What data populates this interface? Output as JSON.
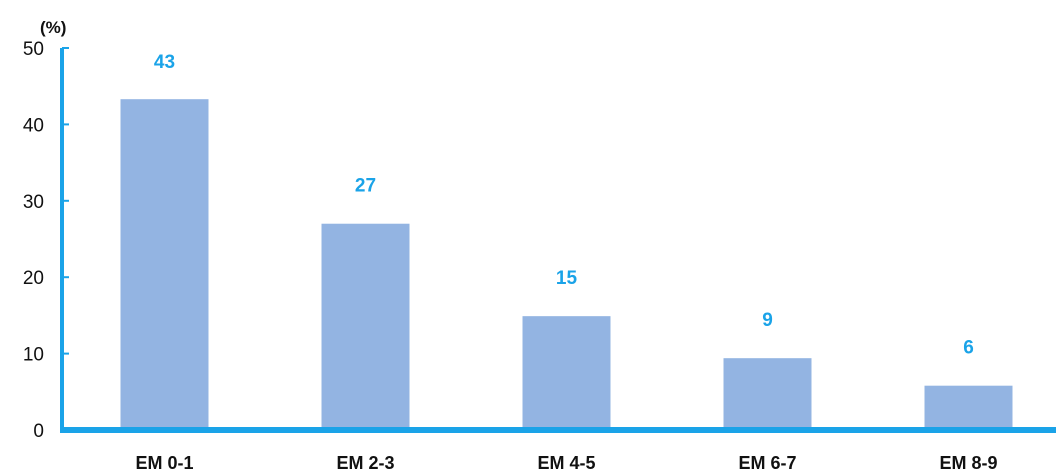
{
  "chart_data": {
    "type": "bar",
    "categories": [
      "EM 0-1",
      "EM 2-3",
      "EM 4-5",
      "EM 6-7",
      "EM 8-9"
    ],
    "values": [
      43.3,
      27.0,
      14.9,
      9.4,
      5.8
    ],
    "data_labels": [
      "43",
      "27",
      "15",
      "9",
      "6"
    ],
    "y_unit": "(%)",
    "ylim": [
      0,
      50
    ],
    "yticks": [
      0,
      10,
      20,
      30,
      40,
      50
    ],
    "grid": false,
    "legend": "none"
  },
  "colors": {
    "bar": "#93b4e2",
    "axis": "#1aa3e8",
    "data_label": "#1aa3e8"
  }
}
